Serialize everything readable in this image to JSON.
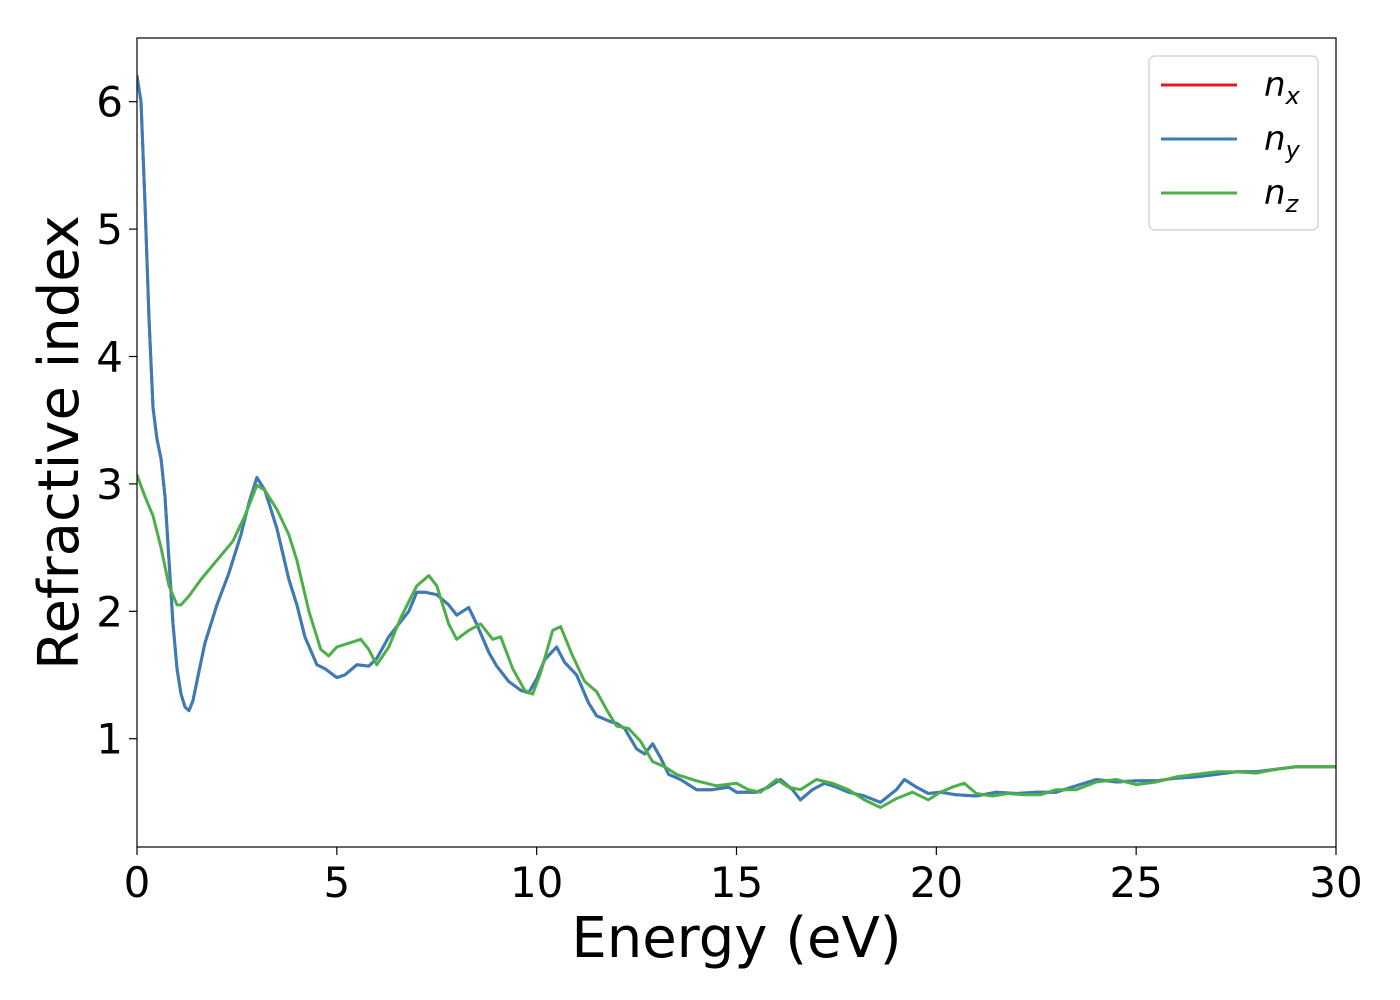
{
  "chart_data": {
    "type": "line",
    "title": "",
    "xlabel": "Energy (eV)",
    "ylabel": "Refractive index",
    "xlim": [
      0,
      30
    ],
    "ylim": [
      0.15,
      6.5
    ],
    "xticks": [
      0,
      5,
      10,
      15,
      20,
      25,
      30
    ],
    "yticks": [
      1,
      2,
      3,
      4,
      5,
      6
    ],
    "grid": false,
    "legend_position": "top-right",
    "series": [
      {
        "name": "n",
        "subscript": "x",
        "color": "#e41a1c",
        "x": [
          0,
          0.1,
          0.2,
          0.3,
          0.4,
          0.5,
          0.6,
          0.7,
          0.8,
          0.9,
          1.0,
          1.1,
          1.2,
          1.3,
          1.4,
          1.5,
          1.7,
          2.0,
          2.3,
          2.6,
          2.8,
          3.0,
          3.2,
          3.5,
          3.8,
          4.0,
          4.2,
          4.5,
          4.7,
          5.0,
          5.2,
          5.5,
          5.8,
          6.0,
          6.3,
          6.5,
          6.8,
          7.0,
          7.2,
          7.5,
          7.8,
          8.0,
          8.3,
          8.5,
          8.8,
          9.0,
          9.3,
          9.6,
          9.8,
          10.0,
          10.2,
          10.5,
          10.7,
          11.0,
          11.3,
          11.5,
          11.8,
          12.0,
          12.2,
          12.5,
          12.7,
          12.9,
          13.1,
          13.3,
          13.6,
          14.0,
          14.4,
          14.8,
          15.0,
          15.5,
          15.8,
          16.1,
          16.4,
          16.6,
          16.9,
          17.2,
          17.5,
          17.8,
          18.2,
          18.6,
          19.0,
          19.2,
          19.5,
          19.8,
          20.1,
          20.5,
          21.0,
          21.5,
          22.0,
          22.5,
          23.0,
          23.5,
          24.0,
          24.5,
          25.0,
          25.5,
          26.0,
          26.5,
          27.0,
          27.5,
          28.0,
          28.5,
          29.0,
          29.5,
          30.0
        ],
        "y": [
          6.2,
          6.0,
          5.2,
          4.3,
          3.6,
          3.35,
          3.2,
          2.9,
          2.4,
          1.9,
          1.55,
          1.35,
          1.25,
          1.22,
          1.3,
          1.45,
          1.75,
          2.05,
          2.3,
          2.6,
          2.85,
          3.05,
          2.95,
          2.65,
          2.25,
          2.05,
          1.8,
          1.58,
          1.55,
          1.48,
          1.5,
          1.58,
          1.57,
          1.63,
          1.8,
          1.88,
          2.0,
          2.15,
          2.15,
          2.13,
          2.05,
          1.97,
          2.03,
          1.9,
          1.68,
          1.57,
          1.45,
          1.38,
          1.36,
          1.47,
          1.62,
          1.72,
          1.6,
          1.5,
          1.28,
          1.18,
          1.14,
          1.12,
          1.08,
          0.92,
          0.88,
          0.96,
          0.85,
          0.72,
          0.68,
          0.6,
          0.6,
          0.62,
          0.58,
          0.58,
          0.62,
          0.68,
          0.6,
          0.52,
          0.6,
          0.65,
          0.62,
          0.58,
          0.55,
          0.5,
          0.6,
          0.68,
          0.62,
          0.57,
          0.58,
          0.56,
          0.55,
          0.58,
          0.57,
          0.58,
          0.58,
          0.63,
          0.68,
          0.66,
          0.67,
          0.67,
          0.69,
          0.7,
          0.72,
          0.74,
          0.74,
          0.76,
          0.78,
          0.78,
          0.78
        ]
      },
      {
        "name": "n",
        "subscript": "y",
        "color": "#377eb8",
        "x": [
          0,
          0.1,
          0.2,
          0.3,
          0.4,
          0.5,
          0.6,
          0.7,
          0.8,
          0.9,
          1.0,
          1.1,
          1.2,
          1.3,
          1.4,
          1.5,
          1.7,
          2.0,
          2.3,
          2.6,
          2.8,
          3.0,
          3.2,
          3.5,
          3.8,
          4.0,
          4.2,
          4.5,
          4.7,
          5.0,
          5.2,
          5.5,
          5.8,
          6.0,
          6.3,
          6.5,
          6.8,
          7.0,
          7.2,
          7.5,
          7.8,
          8.0,
          8.3,
          8.5,
          8.8,
          9.0,
          9.3,
          9.6,
          9.8,
          10.0,
          10.2,
          10.5,
          10.7,
          11.0,
          11.3,
          11.5,
          11.8,
          12.0,
          12.2,
          12.5,
          12.7,
          12.9,
          13.1,
          13.3,
          13.6,
          14.0,
          14.4,
          14.8,
          15.0,
          15.5,
          15.8,
          16.1,
          16.4,
          16.6,
          16.9,
          17.2,
          17.5,
          17.8,
          18.2,
          18.6,
          19.0,
          19.2,
          19.5,
          19.8,
          20.1,
          20.5,
          21.0,
          21.5,
          22.0,
          22.5,
          23.0,
          23.5,
          24.0,
          24.5,
          25.0,
          25.5,
          26.0,
          26.5,
          27.0,
          27.5,
          28.0,
          28.5,
          29.0,
          29.5,
          30.0
        ],
        "y": [
          6.2,
          6.0,
          5.2,
          4.3,
          3.6,
          3.35,
          3.2,
          2.9,
          2.4,
          1.9,
          1.55,
          1.35,
          1.25,
          1.22,
          1.3,
          1.45,
          1.75,
          2.05,
          2.3,
          2.6,
          2.85,
          3.05,
          2.95,
          2.65,
          2.25,
          2.05,
          1.8,
          1.58,
          1.55,
          1.48,
          1.5,
          1.58,
          1.57,
          1.63,
          1.8,
          1.88,
          2.0,
          2.15,
          2.15,
          2.13,
          2.05,
          1.97,
          2.03,
          1.9,
          1.68,
          1.57,
          1.45,
          1.38,
          1.36,
          1.47,
          1.62,
          1.72,
          1.6,
          1.5,
          1.28,
          1.18,
          1.14,
          1.12,
          1.08,
          0.92,
          0.88,
          0.96,
          0.85,
          0.72,
          0.68,
          0.6,
          0.6,
          0.62,
          0.58,
          0.58,
          0.62,
          0.68,
          0.6,
          0.52,
          0.6,
          0.65,
          0.62,
          0.58,
          0.55,
          0.5,
          0.6,
          0.68,
          0.62,
          0.57,
          0.58,
          0.56,
          0.55,
          0.58,
          0.57,
          0.58,
          0.58,
          0.63,
          0.68,
          0.66,
          0.67,
          0.67,
          0.69,
          0.7,
          0.72,
          0.74,
          0.74,
          0.76,
          0.78,
          0.78,
          0.78
        ]
      },
      {
        "name": "n",
        "subscript": "z",
        "color": "#4daf4a",
        "x": [
          0,
          0.2,
          0.4,
          0.6,
          0.8,
          1.0,
          1.1,
          1.3,
          1.6,
          2.0,
          2.4,
          2.7,
          3.0,
          3.2,
          3.5,
          3.8,
          4.0,
          4.3,
          4.6,
          4.8,
          5.0,
          5.3,
          5.6,
          5.8,
          6.0,
          6.3,
          6.6,
          7.0,
          7.3,
          7.5,
          7.8,
          8.0,
          8.3,
          8.6,
          8.9,
          9.1,
          9.4,
          9.7,
          9.9,
          10.1,
          10.4,
          10.6,
          10.9,
          11.2,
          11.5,
          11.8,
          12.0,
          12.3,
          12.6,
          12.9,
          13.2,
          13.5,
          14.0,
          14.5,
          15.0,
          15.3,
          15.6,
          16.0,
          16.3,
          16.6,
          17.0,
          17.4,
          17.8,
          18.2,
          18.6,
          19.0,
          19.4,
          19.8,
          20.1,
          20.4,
          20.7,
          21.0,
          21.4,
          21.8,
          22.2,
          22.6,
          23.0,
          23.5,
          24.0,
          24.5,
          25.0,
          25.5,
          26.0,
          26.5,
          27.0,
          27.5,
          28.0,
          28.5,
          29.0,
          29.5,
          30.0
        ],
        "y": [
          3.07,
          2.9,
          2.75,
          2.5,
          2.2,
          2.05,
          2.05,
          2.12,
          2.25,
          2.4,
          2.55,
          2.75,
          2.99,
          2.95,
          2.8,
          2.6,
          2.4,
          2.0,
          1.7,
          1.65,
          1.72,
          1.75,
          1.78,
          1.7,
          1.58,
          1.72,
          1.95,
          2.2,
          2.28,
          2.2,
          1.9,
          1.78,
          1.85,
          1.9,
          1.78,
          1.8,
          1.55,
          1.38,
          1.35,
          1.52,
          1.85,
          1.88,
          1.65,
          1.45,
          1.37,
          1.2,
          1.1,
          1.08,
          0.98,
          0.82,
          0.78,
          0.72,
          0.67,
          0.63,
          0.65,
          0.6,
          0.58,
          0.68,
          0.62,
          0.6,
          0.68,
          0.65,
          0.6,
          0.52,
          0.46,
          0.53,
          0.58,
          0.52,
          0.58,
          0.62,
          0.65,
          0.57,
          0.55,
          0.57,
          0.56,
          0.56,
          0.6,
          0.6,
          0.66,
          0.68,
          0.64,
          0.66,
          0.7,
          0.72,
          0.74,
          0.74,
          0.73,
          0.76,
          0.78,
          0.78,
          0.78
        ]
      }
    ]
  }
}
